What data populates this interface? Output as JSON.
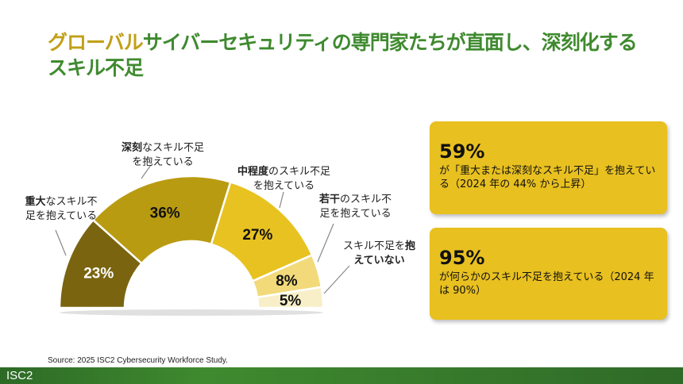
{
  "title": {
    "highlight": "グローバル",
    "rest_line1": "サイバーセキュリティの専門家たちが直面し、深刻化する",
    "line2": "スキル不足"
  },
  "chart_data": {
    "type": "pie",
    "variant": "half-donut",
    "categories": [
      "重大なスキル不足を抱えている",
      "深刻なスキル不足を抱えている",
      "中程度のスキル不足を抱えている",
      "若干のスキル不足を抱えている",
      "スキル不足を抱えていない"
    ],
    "values": [
      23,
      36,
      27,
      8,
      5
    ],
    "data_labels": [
      "23%",
      "36%",
      "27%",
      "8%",
      "5%"
    ],
    "colors": [
      "#7a6410",
      "#b99b12",
      "#e8c220",
      "#f2da7a",
      "#f8efc8"
    ],
    "label_colors": [
      "#ffffff",
      "#111111",
      "#111111",
      "#111111",
      "#111111"
    ]
  },
  "labels": [
    {
      "bold": "重大",
      "rest1": "なスキル不",
      "line2": "足を抱えている"
    },
    {
      "bold": "深刻",
      "rest1": "なスキル不足",
      "line2": "を抱えている"
    },
    {
      "bold": "中程度",
      "rest1": "のスキル不足",
      "line2": "を抱えている"
    },
    {
      "bold": "若干",
      "rest1": "のスキル不",
      "line2": "足を抱えている"
    },
    {
      "pre": "スキル不足を",
      "bold": "抱",
      "line2": "えていない"
    }
  ],
  "boxes": [
    {
      "big": "59%",
      "text": "が「重大または深刻なスキル不足」を抱えている（2024 年の 44% から上昇）"
    },
    {
      "big": "95%",
      "text": "が何らかのスキル不足を抱えている（2024 年は 90%）"
    }
  ],
  "source": "Source: 2025 ISC2 Cybersecurity Workforce Study.",
  "footer": {
    "logo": "ISC2"
  }
}
